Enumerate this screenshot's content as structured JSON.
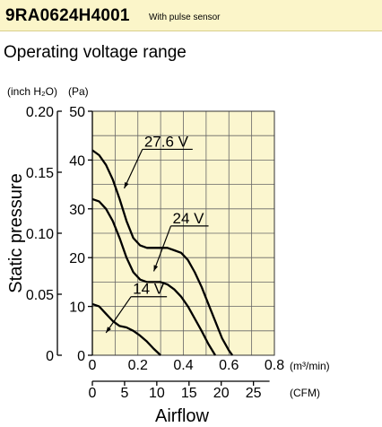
{
  "header": {
    "model": "9RA0624H4001",
    "tag": "With pulse sensor"
  },
  "section_title": "Operating voltage range",
  "chart_data": {
    "type": "line",
    "xlabel": "Airflow",
    "ylabel": "Static pressure",
    "x_unit": "(m³/min)",
    "x2_unit": "(CFM)",
    "y_unit": "(Pa)",
    "y2_unit": "(inch H₂O)",
    "xlim": [
      0,
      0.8
    ],
    "ylim": [
      0,
      50
    ],
    "x_ticks": [
      "0",
      "0.2",
      "0.4",
      "0.6",
      "0.8"
    ],
    "x2_ticks": [
      "0",
      "5",
      "10",
      "15",
      "20",
      "25"
    ],
    "y_ticks": [
      "0",
      "10",
      "20",
      "30",
      "40",
      "50"
    ],
    "y2_ticks": [
      "0",
      "0.05",
      "0.10",
      "0.15",
      "0.20"
    ],
    "grid": true,
    "series": [
      {
        "name": "27.6 V",
        "x": [
          0,
          0.03,
          0.06,
          0.09,
          0.12,
          0.15,
          0.18,
          0.21,
          0.24,
          0.27,
          0.3,
          0.33,
          0.36,
          0.39,
          0.42,
          0.45,
          0.48,
          0.51,
          0.54,
          0.57,
          0.6,
          0.615
        ],
        "y": [
          42,
          41,
          39,
          36,
          32,
          27.5,
          24,
          22.5,
          22,
          22,
          22,
          22,
          21.5,
          21,
          19.5,
          17,
          14,
          10.5,
          7,
          3.5,
          1,
          0
        ]
      },
      {
        "name": "24 V",
        "x": [
          0,
          0.03,
          0.06,
          0.09,
          0.12,
          0.15,
          0.18,
          0.21,
          0.24,
          0.27,
          0.3,
          0.33,
          0.36,
          0.39,
          0.42,
          0.45,
          0.48,
          0.51,
          0.54
        ],
        "y": [
          32,
          31.5,
          30,
          27.5,
          24,
          20,
          17,
          15.5,
          15,
          15,
          15,
          14.5,
          13.5,
          12,
          10,
          7.5,
          5,
          2.3,
          0
        ]
      },
      {
        "name": "14 V",
        "x": [
          0,
          0.03,
          0.06,
          0.09,
          0.12,
          0.15,
          0.18,
          0.21,
          0.24,
          0.27,
          0.3
        ],
        "y": [
          10.5,
          10,
          8.5,
          7,
          6,
          5.7,
          5,
          4,
          2.8,
          1.3,
          0
        ]
      }
    ]
  }
}
